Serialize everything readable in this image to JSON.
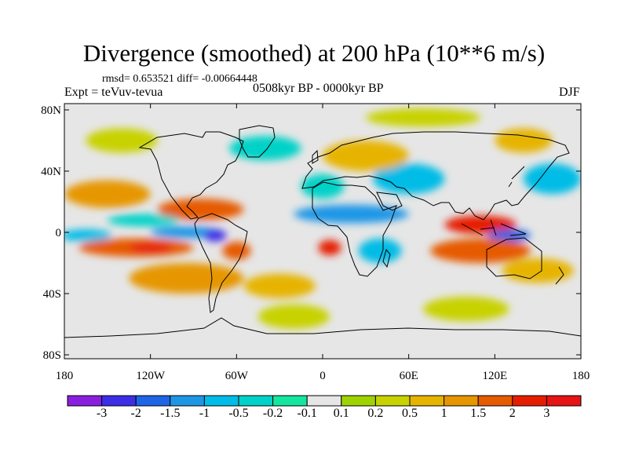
{
  "title": "Divergence (smoothed) at 200 hPa (10**6 m/s)",
  "stats": "rmsd= 0.653521 diff= -0.00664448",
  "expt": "Expt = teVuv-tevua",
  "period": "0508kyr BP - 0000kyr BP",
  "season": "DJF",
  "axes": {
    "y_ticks": [
      "80N",
      "40N",
      "0",
      "40S",
      "80S"
    ],
    "y_values": [
      80,
      40,
      0,
      -40,
      -80
    ],
    "x_ticks": [
      "180",
      "120W",
      "60W",
      "0",
      "60E",
      "120E",
      "180"
    ],
    "x_values": [
      -180,
      -120,
      -60,
      0,
      60,
      120,
      180
    ]
  },
  "colorbar": {
    "labels": [
      "-3",
      "-2",
      "-1.5",
      "-1",
      "-0.5",
      "-0.2",
      "-0.1",
      "0.1",
      "0.2",
      "0.5",
      "1",
      "1.5",
      "2",
      "3"
    ],
    "colors": [
      "#8a1ee0",
      "#3c2ee6",
      "#1e64e6",
      "#1e96e6",
      "#00bce6",
      "#00d2c8",
      "#14e6a0",
      "#e6e6e6",
      "#9ed200",
      "#c8d200",
      "#e6b400",
      "#e69600",
      "#e65a00",
      "#e61e00",
      "#e61414"
    ]
  },
  "field_blobs": [
    {
      "lon": -85,
      "lat": 15,
      "rx": 30,
      "ry": 7,
      "level": 12
    },
    {
      "lon": -150,
      "lat": 25,
      "rx": 30,
      "ry": 9,
      "level": 11
    },
    {
      "lon": -125,
      "lat": 8,
      "rx": 25,
      "ry": 4,
      "level": 5
    },
    {
      "lon": -165,
      "lat": -2,
      "rx": 18,
      "ry": 4,
      "level": 4
    },
    {
      "lon": -95,
      "lat": 0,
      "rx": 25,
      "ry": 4,
      "level": 3
    },
    {
      "lon": -75,
      "lat": -2,
      "rx": 8,
      "ry": 4,
      "level": 1
    },
    {
      "lon": -130,
      "lat": -10,
      "rx": 40,
      "ry": 6,
      "level": 12
    },
    {
      "lon": -120,
      "lat": -10,
      "rx": 15,
      "ry": 3,
      "level": 14
    },
    {
      "lon": -95,
      "lat": -30,
      "rx": 40,
      "ry": 10,
      "level": 11
    },
    {
      "lon": -60,
      "lat": -12,
      "rx": 10,
      "ry": 6,
      "level": 12
    },
    {
      "lon": -30,
      "lat": -35,
      "rx": 25,
      "ry": 8,
      "level": 10
    },
    {
      "lon": 5,
      "lat": -10,
      "rx": 8,
      "ry": 5,
      "level": 13
    },
    {
      "lon": 40,
      "lat": -12,
      "rx": 15,
      "ry": 8,
      "level": 4
    },
    {
      "lon": 20,
      "lat": 12,
      "rx": 40,
      "ry": 6,
      "level": 3
    },
    {
      "lon": 0,
      "lat": 30,
      "rx": 15,
      "ry": 8,
      "level": 5
    },
    {
      "lon": 60,
      "lat": 35,
      "rx": 25,
      "ry": 10,
      "level": 4
    },
    {
      "lon": 30,
      "lat": 50,
      "rx": 30,
      "ry": 10,
      "level": 10
    },
    {
      "lon": 70,
      "lat": 75,
      "rx": 40,
      "ry": 6,
      "level": 9
    },
    {
      "lon": 110,
      "lat": 5,
      "rx": 25,
      "ry": 6,
      "level": 13
    },
    {
      "lon": 130,
      "lat": -2,
      "rx": 15,
      "ry": 4,
      "level": 2
    },
    {
      "lon": 110,
      "lat": -12,
      "rx": 35,
      "ry": 8,
      "level": 12
    },
    {
      "lon": 150,
      "lat": -25,
      "rx": 25,
      "ry": 8,
      "level": 10
    },
    {
      "lon": 160,
      "lat": 35,
      "rx": 20,
      "ry": 10,
      "level": 4
    },
    {
      "lon": 140,
      "lat": 60,
      "rx": 20,
      "ry": 8,
      "level": 10
    },
    {
      "lon": -140,
      "lat": 60,
      "rx": 25,
      "ry": 8,
      "level": 9
    },
    {
      "lon": -40,
      "lat": 55,
      "rx": 25,
      "ry": 8,
      "level": 5
    },
    {
      "lon": -20,
      "lat": -55,
      "rx": 25,
      "ry": 8,
      "level": 9
    },
    {
      "lon": 100,
      "lat": -50,
      "rx": 30,
      "ry": 8,
      "level": 9
    }
  ]
}
